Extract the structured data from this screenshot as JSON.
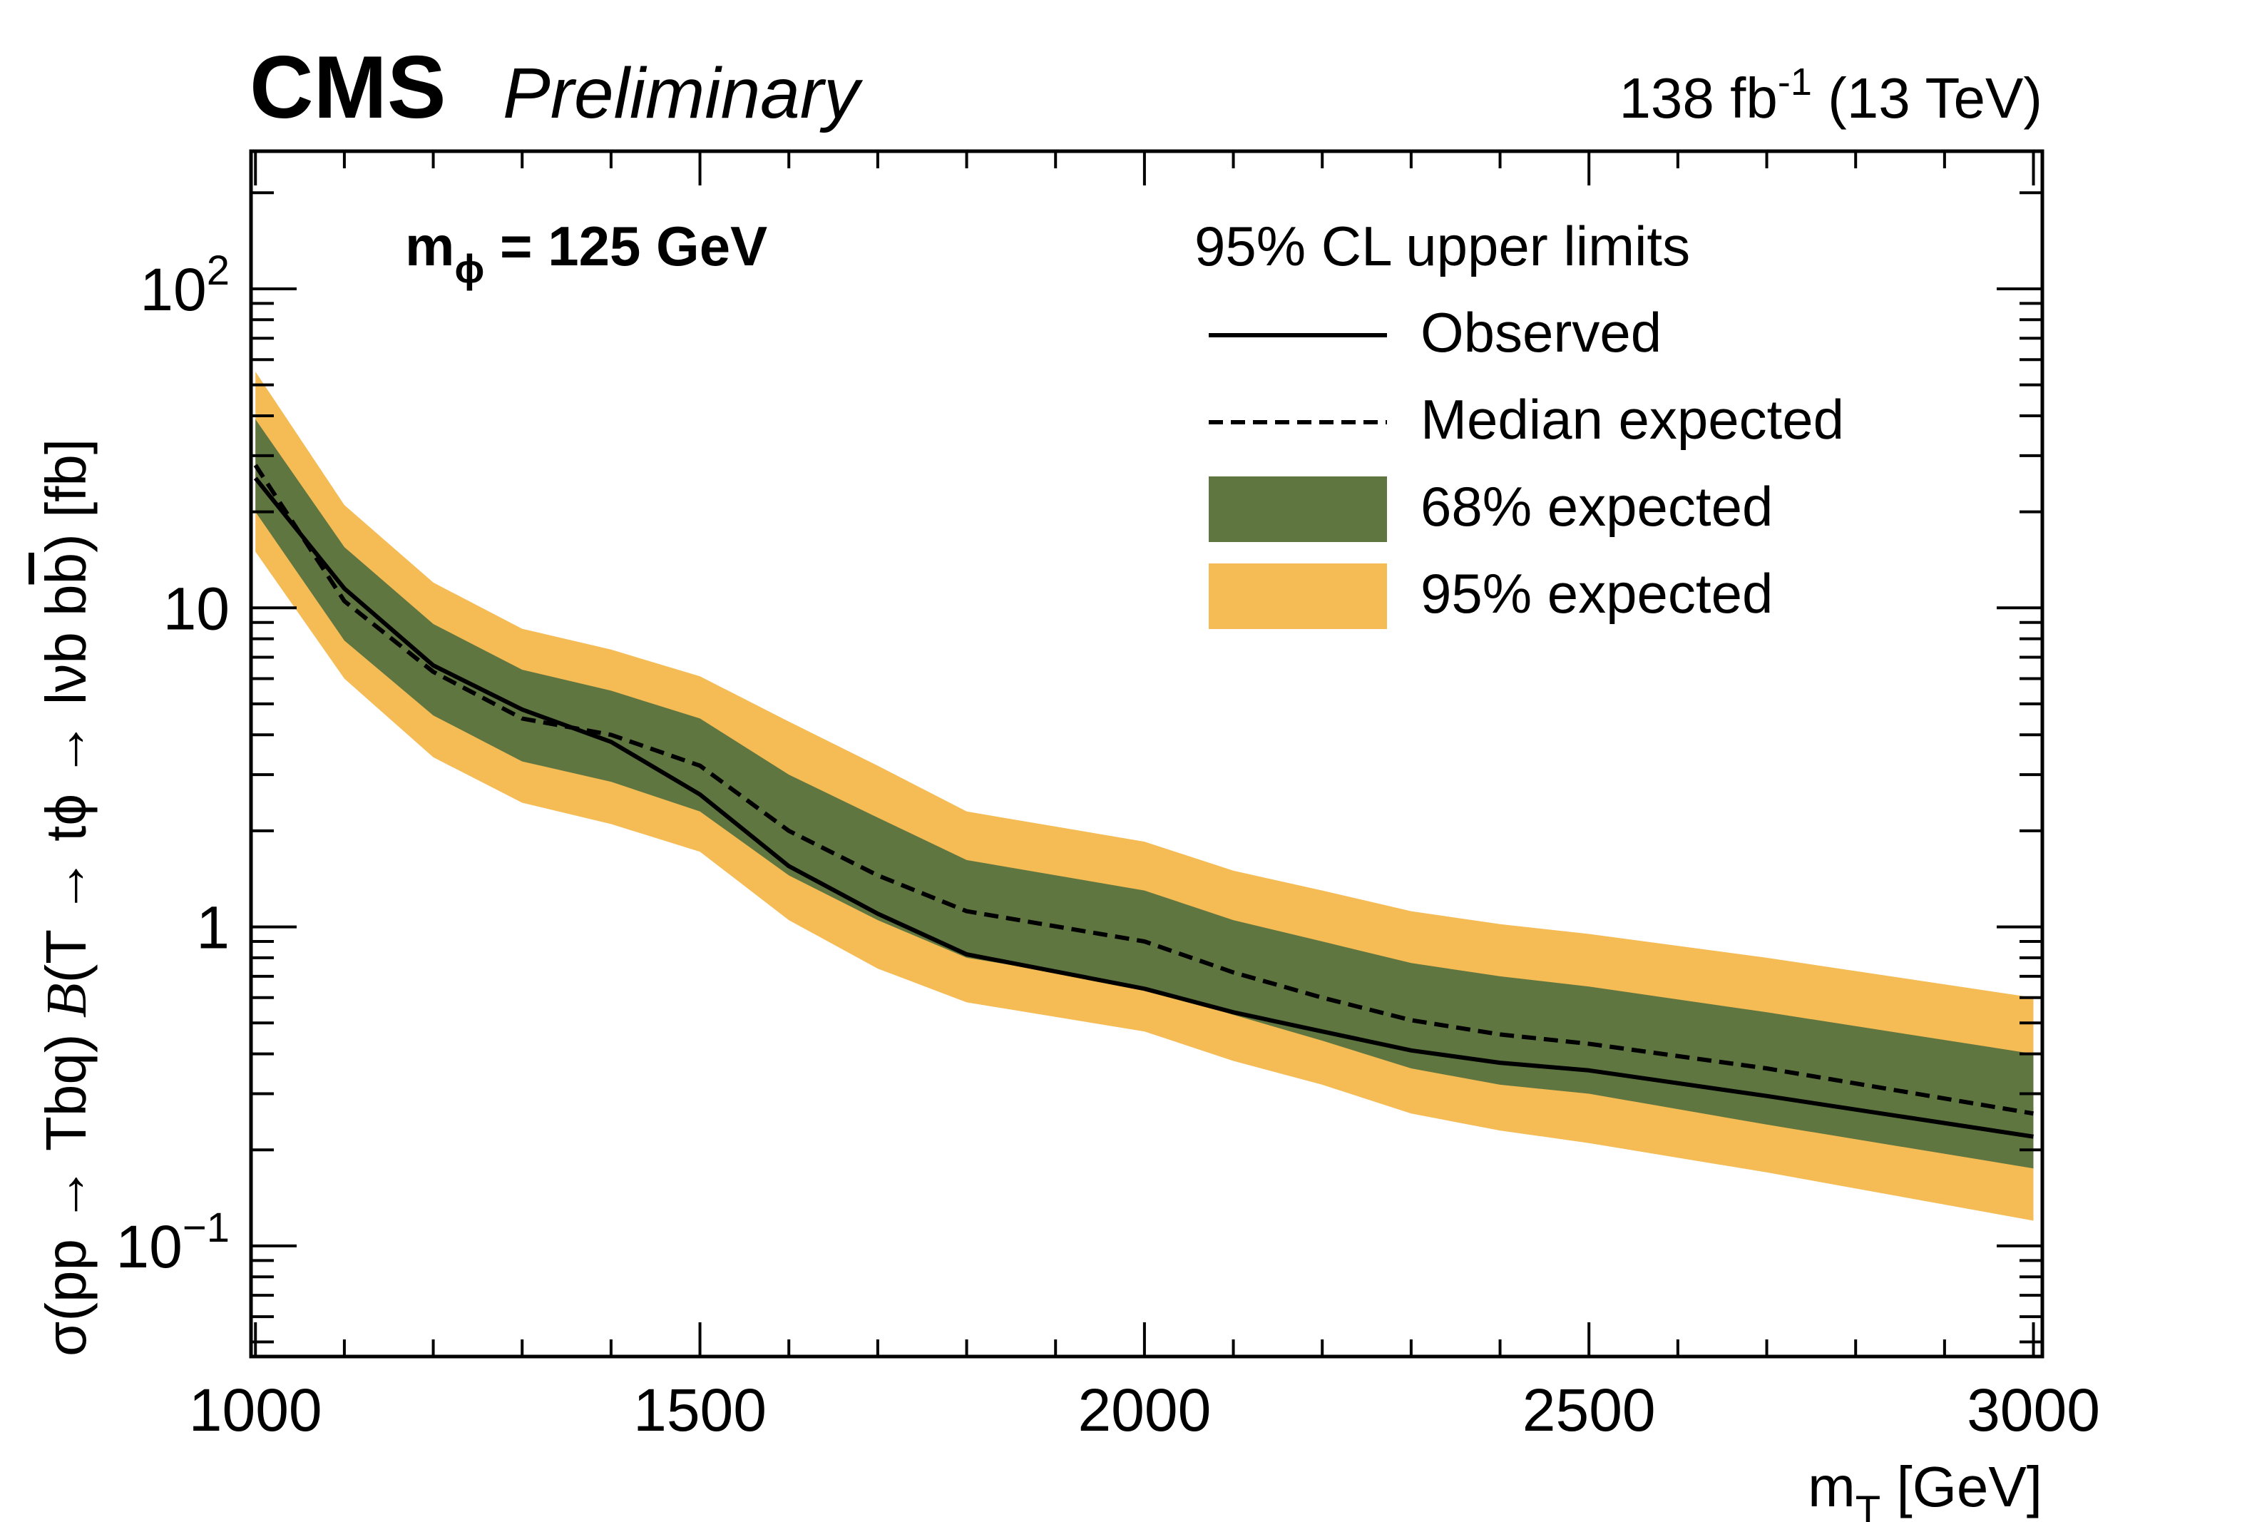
{
  "header": {
    "experiment": "CMS",
    "status": "Preliminary",
    "lumi_value": "138 fb",
    "lumi_exp": "-1",
    "energy": " (13 TeV)"
  },
  "annotation": {
    "mphi_main": "m",
    "mphi_sub": "ϕ",
    "mphi_rest": " = 125 GeV"
  },
  "legend": {
    "title": "95% CL upper limits",
    "entries": [
      "Observed",
      "Median expected",
      "68% expected",
      "95% expected"
    ]
  },
  "axes": {
    "xlabel_main": "m",
    "xlabel_sub": "T",
    "xlabel_rest": " [GeV]",
    "ylabel_a": "σ(pp → Tbq) ",
    "ylabel_b": "B",
    "ylabel_c": "(T → tϕ → lνb  b",
    "ylabel_d": "b",
    "ylabel_e": ") [fb]",
    "x_ticks": [
      "1000",
      "1500",
      "2000",
      "2500",
      "3000"
    ],
    "y_ticks": [
      {
        "base": "10",
        "exp": "−1"
      },
      {
        "base": "1",
        "exp": ""
      },
      {
        "base": "10",
        "exp": ""
      },
      {
        "base": "10",
        "exp": "2"
      }
    ]
  },
  "colors": {
    "band95": "#F5BB54",
    "band68": "#607641",
    "line": "#000000"
  },
  "chart_data": {
    "type": "line",
    "xscale": "linear",
    "yscale": "log",
    "xlim": [
      995,
      3010
    ],
    "ylim": [
      0.045,
      270
    ],
    "xlabel": "mT [GeV]",
    "ylabel": "σ(pp → Tbq) B(T → tϕ → lνb bb̄) [fb]",
    "legend_position": "top-right",
    "x": [
      1000,
      1100,
      1200,
      1300,
      1400,
      1500,
      1600,
      1700,
      1800,
      2000,
      2100,
      2200,
      2300,
      2400,
      2500,
      2700,
      3000
    ],
    "series": [
      {
        "name": "Observed",
        "values": [
          25.5,
          11.5,
          6.6,
          4.8,
          3.8,
          2.6,
          1.55,
          1.1,
          0.82,
          0.64,
          0.54,
          0.47,
          0.41,
          0.375,
          0.355,
          0.295,
          0.22
        ]
      },
      {
        "name": "Median expected",
        "values": [
          28,
          10.5,
          6.3,
          4.5,
          4.0,
          3.2,
          2.0,
          1.45,
          1.12,
          0.9,
          0.72,
          0.6,
          0.51,
          0.46,
          0.43,
          0.36,
          0.26
        ]
      },
      {
        "name": "68% expected",
        "lower": [
          20,
          7.9,
          4.6,
          3.3,
          2.85,
          2.3,
          1.45,
          1.05,
          0.8,
          0.65,
          0.53,
          0.44,
          0.36,
          0.32,
          0.3,
          0.24,
          0.175
        ],
        "upper": [
          39,
          15.5,
          8.9,
          6.4,
          5.5,
          4.5,
          3.0,
          2.2,
          1.62,
          1.3,
          1.05,
          0.9,
          0.77,
          0.7,
          0.65,
          0.54,
          0.4
        ]
      },
      {
        "name": "95% expected",
        "lower": [
          15,
          6.0,
          3.4,
          2.45,
          2.1,
          1.72,
          1.05,
          0.74,
          0.58,
          0.47,
          0.38,
          0.32,
          0.26,
          0.23,
          0.21,
          0.17,
          0.12
        ]
      }
    ],
    "band95_upper": [
      55,
      21,
      12,
      8.6,
      7.4,
      6.1,
      4.4,
      3.2,
      2.3,
      1.85,
      1.5,
      1.3,
      1.12,
      1.02,
      0.95,
      0.8,
      0.6
    ]
  }
}
